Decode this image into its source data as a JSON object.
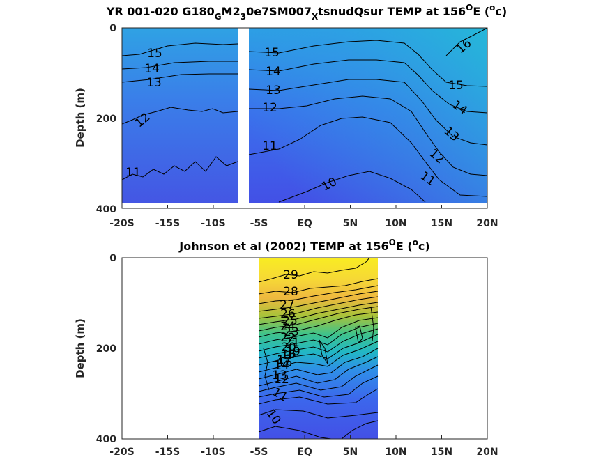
{
  "chart_data": [
    {
      "type": "heatmap",
      "title_main": "YR 001-020 G180",
      "title_sub1": "G",
      "title_mid": "M2",
      "title_sub2": "3",
      "title_mid2": "0e7SM007",
      "title_sub3": "X",
      "title_tail": "tsnudQsur TEMP at 156",
      "title_sup1": "O",
      "title_unit": "E (",
      "title_sup2": "o",
      "title_end": "c)",
      "ylabel": "Depth (m)",
      "xlim": [
        -20,
        20
      ],
      "ylim": [
        400,
        0
      ],
      "x_ticks": [
        "-20S",
        "-15S",
        "-10S",
        "-5S",
        "EQ",
        "5N",
        "10N",
        "15N",
        "20N"
      ],
      "y_ticks": [
        "0",
        "200",
        "400"
      ],
      "data_gap_lat": [
        -7.3,
        -6.2
      ],
      "data_extent_lat": [
        -20,
        20
      ],
      "data_extent_depth": [
        0,
        385
      ],
      "contour_labels": [
        "15",
        "14",
        "13",
        "12",
        "11",
        "15",
        "14",
        "13",
        "12",
        "11",
        "10",
        "16",
        "15",
        "14",
        "13",
        "12",
        "11"
      ],
      "colors": {
        "cold": "#4150e6",
        "mid": "#3b86f0",
        "warm": "#25b0d8"
      }
    },
    {
      "type": "heatmap",
      "title_main": "Johnson et al (2002) TEMP at 156",
      "title_sup1": "O",
      "title_unit": "E (",
      "title_sup2": "o",
      "title_end": "c)",
      "ylabel": "Depth (m)",
      "xlim": [
        -20,
        20
      ],
      "ylim": [
        400,
        0
      ],
      "x_ticks": [
        "-20S",
        "-15S",
        "-10S",
        "-5S",
        "EQ",
        "5N",
        "10N",
        "15N",
        "20N"
      ],
      "y_ticks": [
        "0",
        "200",
        "400"
      ],
      "data_extent_lat": [
        -5,
        8
      ],
      "contour_labels": [
        "29",
        "28",
        "27",
        "26",
        "25",
        "24",
        "23",
        "22",
        "21",
        "20",
        "19",
        "18",
        "17",
        "16",
        "15",
        "14",
        "13",
        "12",
        "11",
        "10"
      ],
      "colors": {
        "surface": "#f8e722",
        "upper": "#f2c43a",
        "thermocline": "#2fc39e",
        "deep": "#4150e6"
      }
    }
  ]
}
